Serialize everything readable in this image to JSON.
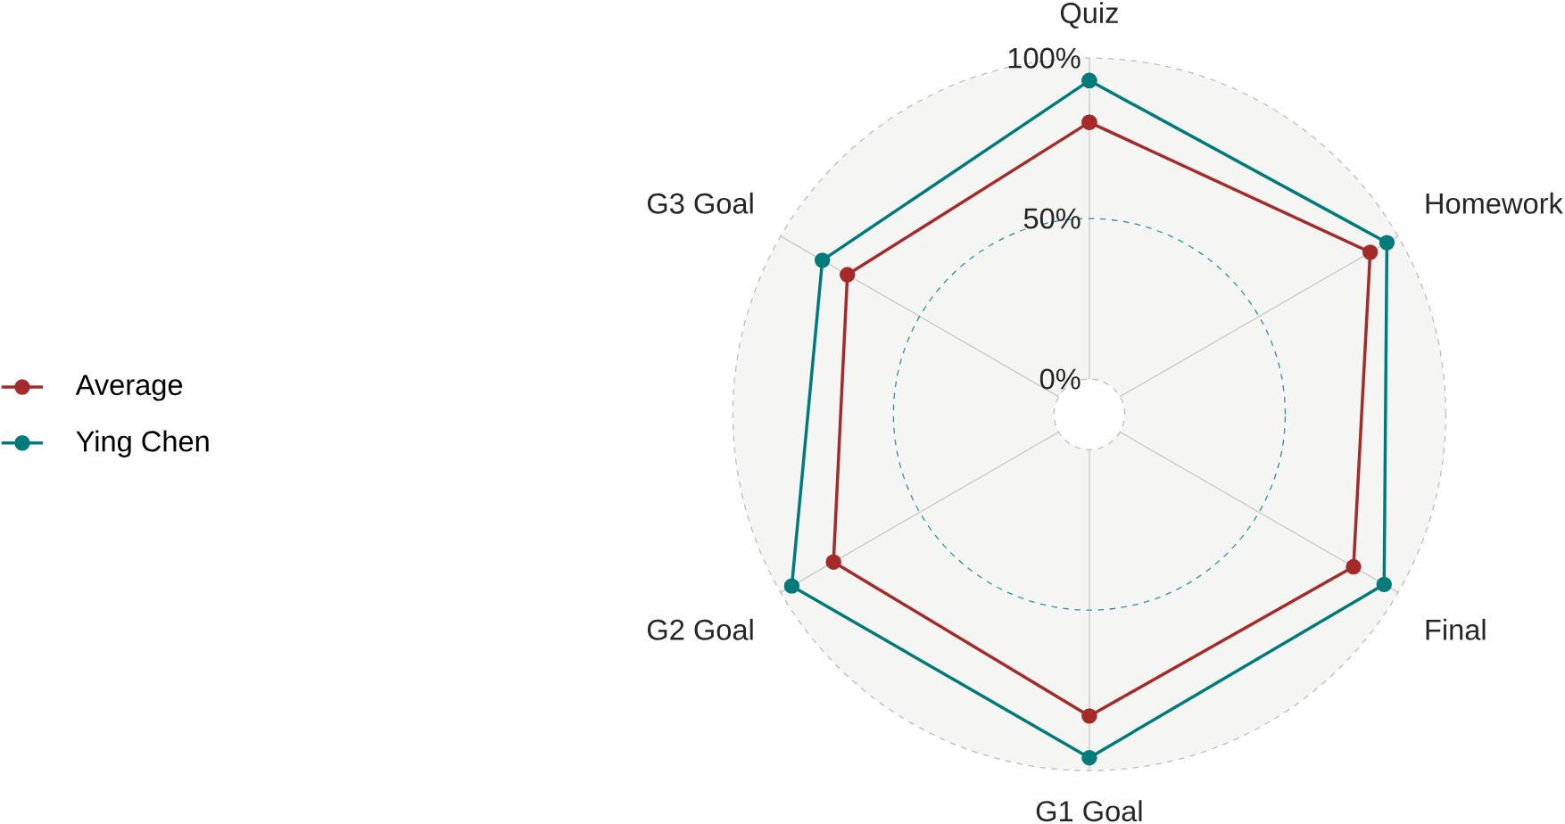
{
  "chart_data": {
    "type": "radar",
    "categories": [
      "Quiz",
      "Homework",
      "Final",
      "G1 Goal",
      "G2 Goal",
      "G3 Goal"
    ],
    "series": [
      {
        "name": "Average",
        "color": "#a52a2a",
        "values": [
          80,
          90,
          84,
          83,
          81,
          76
        ]
      },
      {
        "name": "Ying Chen",
        "color": "#007b7b",
        "values": [
          93,
          96,
          95,
          96,
          96,
          85
        ]
      }
    ],
    "ylim": [
      -11,
      100
    ],
    "yticks": [
      {
        "value": 0,
        "label": "0%"
      },
      {
        "value": 50,
        "label": "50%"
      },
      {
        "value": 100,
        "label": "100%"
      }
    ],
    "legend": "left",
    "marker": "circle",
    "line_style": "solid",
    "grid": true
  }
}
